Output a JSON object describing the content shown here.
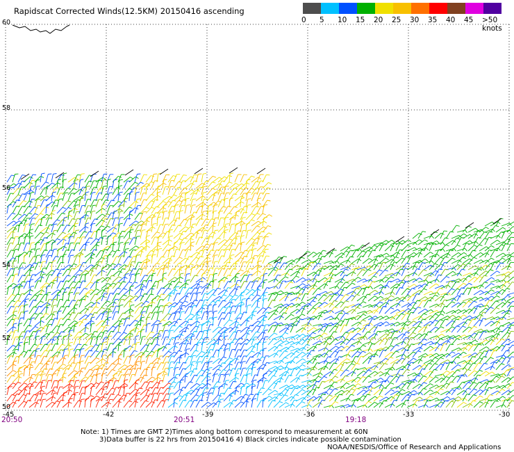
{
  "title": "Rapidscat Corrected Winds(12.5KM) 20150416 ascending",
  "legend": {
    "labels": [
      "0",
      "5",
      "10",
      "15",
      "20",
      "25",
      "30",
      "35",
      "40",
      "45",
      ">50 knots"
    ],
    "colors": [
      "#4d4d4d",
      "#00c0ff",
      "#0050ff",
      "#00b000",
      "#f0e000",
      "#f8c000",
      "#ff7000",
      "#ff0000",
      "#804020",
      "#e000e0",
      "#5000a0"
    ]
  },
  "lat_labels": [
    "60",
    "58",
    "56",
    "54",
    "52",
    "50"
  ],
  "lon_labels": [
    "-45",
    "-42",
    "-39",
    "-36",
    "-33",
    "-30"
  ],
  "times": [
    "20:50",
    "20:51",
    "19:18"
  ],
  "notes": {
    "line1": "Note: 1) Times are GMT 2)Times along bottom correspond to measurement at 60N",
    "line2": "3)Data buffer is 22 hrs from 20150416 4) Black circles indicate possible contamination",
    "credit": "NOAA/NESDIS/Office of Research and Applications"
  }
}
